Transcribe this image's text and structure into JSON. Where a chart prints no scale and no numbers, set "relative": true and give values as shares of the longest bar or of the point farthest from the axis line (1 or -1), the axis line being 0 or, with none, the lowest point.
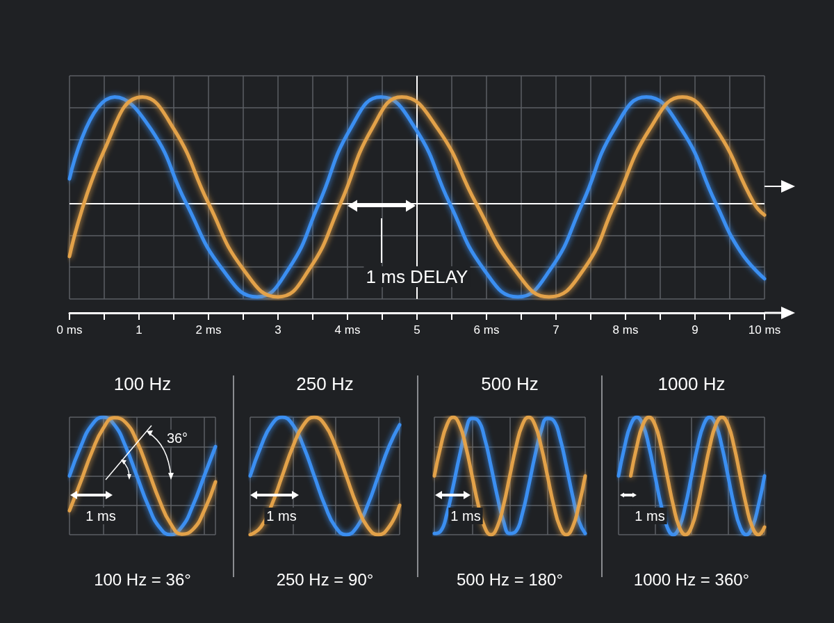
{
  "chart_data": [
    {
      "type": "line",
      "relative": true,
      "marker": "none",
      "grid": true,
      "xlim": [
        0,
        10
      ],
      "xticks": [
        {
          "value": 0,
          "label": "0 ms"
        },
        {
          "value": 0.5,
          "label": null
        },
        {
          "value": 1,
          "label": "1"
        },
        {
          "value": 1.5,
          "label": null
        },
        {
          "value": 2,
          "label": "2 ms"
        },
        {
          "value": 2.5,
          "label": null
        },
        {
          "value": 3,
          "label": "3"
        },
        {
          "value": 3.5,
          "label": null
        },
        {
          "value": 4,
          "label": "4 ms"
        },
        {
          "value": 4.5,
          "label": null
        },
        {
          "value": 5,
          "label": "5"
        },
        {
          "value": 5.5,
          "label": null
        },
        {
          "value": 6,
          "label": "6 ms"
        },
        {
          "value": 6.5,
          "label": null
        },
        {
          "value": 7,
          "label": "7"
        },
        {
          "value": 7.5,
          "label": null
        },
        {
          "value": 8,
          "label": "8 ms"
        },
        {
          "value": 8.5,
          "label": null
        },
        {
          "value": 9,
          "label": "9"
        },
        {
          "value": 9.5,
          "label": null
        },
        {
          "value": 10,
          "label": "10 ms"
        }
      ],
      "series": [
        {
          "color": "#3b8ff2",
          "x": [
            0,
            0.65,
            1.17,
            1.68,
            2.2,
            2.7,
            3.15,
            3.59,
            4.04,
            4.48,
            4.98,
            5.47,
            5.96,
            6.45,
            6.92,
            7.38,
            7.84,
            8.3,
            8.8,
            9.3,
            9.65,
            10
          ],
          "values": [
            0.23,
            1,
            0.7,
            0,
            -0.62,
            -0.88,
            -0.62,
            0,
            0.7,
            1,
            0.7,
            0,
            -0.62,
            -0.88,
            -0.62,
            0,
            0.7,
            1,
            0.7,
            0,
            -0.45,
            -0.71
          ]
        },
        {
          "color": "#e3a24a",
          "x": [
            0,
            0.5,
            1.05,
            1.5,
            2.0,
            2.5,
            3.0,
            3.45,
            3.9,
            4.35,
            4.78,
            5.3,
            5.85,
            6.4,
            6.9,
            7.4,
            7.85,
            8.35,
            8.82,
            9.3,
            9.85,
            10
          ],
          "values": [
            -0.5,
            0.5,
            1,
            0.7,
            0,
            -0.62,
            -0.88,
            -0.62,
            0,
            0.7,
            1,
            0.7,
            0,
            -0.62,
            -0.88,
            -0.62,
            0,
            0.7,
            1,
            0.7,
            0,
            -0.11
          ]
        }
      ],
      "ref_lines": [
        {
          "axis": "y",
          "value": 0
        },
        {
          "axis": "x",
          "value": 5
        }
      ],
      "annotations": [
        "1 ms DELAY"
      ]
    },
    {
      "type": "line",
      "relative": true,
      "marker": "none",
      "grid": true,
      "title": "100 Hz",
      "xlabel": "100 Hz = 36°",
      "categories": [
        null,
        null,
        null,
        null,
        null,
        null,
        null,
        null,
        null,
        null,
        null,
        null,
        null,
        null
      ],
      "series": [
        {
          "color": "#3b8ff2",
          "values": [
            0,
            0.5,
            0.87,
            1,
            0.87,
            0.5,
            0,
            -0.5,
            -0.87,
            -1,
            -0.87,
            -0.5,
            0,
            0.5
          ]
        },
        {
          "color": "#e3a24a",
          "values": [
            -0.59,
            -0.1,
            0.41,
            0.81,
            0.99,
            0.91,
            0.59,
            0.1,
            -0.41,
            -0.81,
            -0.99,
            -0.91,
            -0.59,
            -0.1
          ]
        }
      ],
      "annotations": [
        "1 ms",
        "36°"
      ]
    },
    {
      "type": "line",
      "relative": true,
      "marker": "none",
      "grid": true,
      "title": "250 Hz",
      "xlabel": "250 Hz = 90°",
      "categories": [
        null,
        null,
        null,
        null,
        null,
        null,
        null,
        null,
        null,
        null,
        null,
        null,
        null,
        null,
        null
      ],
      "series": [
        {
          "color": "#3b8ff2",
          "values": [
            0,
            0.5,
            0.87,
            1,
            0.87,
            0.5,
            0,
            -0.5,
            -0.87,
            -1,
            -0.87,
            -0.5,
            0,
            0.5,
            0.87
          ]
        },
        {
          "color": "#e3a24a",
          "values": [
            -1,
            -0.87,
            -0.5,
            0,
            0.5,
            0.87,
            1,
            0.87,
            0.5,
            0,
            -0.5,
            -0.87,
            -1,
            -0.87,
            -0.5
          ]
        }
      ],
      "annotations": [
        "1 ms"
      ]
    },
    {
      "type": "line",
      "relative": true,
      "marker": "none",
      "grid": true,
      "title": "500 Hz",
      "xlabel": "500 Hz = 180°",
      "categories": [
        null,
        null,
        null,
        null,
        null,
        null,
        null,
        null,
        null,
        null,
        null,
        null,
        null,
        null,
        null,
        null,
        null,
        null,
        null,
        null,
        null,
        null,
        null,
        null,
        null
      ],
      "series": [
        {
          "color": "#3b8ff2",
          "values": [
            -0.98,
            -0.94,
            -0.64,
            -0.17,
            0.34,
            0.77,
            0.98,
            0.94,
            0.64,
            0.17,
            -0.34,
            -0.77,
            -0.98,
            -0.94,
            -0.64,
            -0.17,
            0.34,
            0.77,
            0.98,
            0.94,
            0.64,
            0.17,
            -0.34,
            -0.77,
            -0.98
          ]
        },
        {
          "color": "#e3a24a",
          "values": [
            0,
            0.5,
            0.87,
            1,
            0.87,
            0.5,
            0,
            -0.5,
            -0.87,
            -1,
            -0.87,
            -0.5,
            0,
            0.5,
            0.87,
            1,
            0.87,
            0.5,
            0,
            -0.5,
            -0.87,
            -1,
            -0.87,
            -0.5,
            0
          ]
        }
      ],
      "annotations": [
        "1 ms"
      ]
    },
    {
      "type": "line",
      "relative": true,
      "marker": "none",
      "grid": true,
      "title": "1000 Hz",
      "xlabel": "1000 Hz = 360°",
      "categories": [
        null,
        null,
        null,
        null,
        null,
        null,
        null,
        null,
        null,
        null,
        null,
        null,
        null,
        null,
        null,
        null,
        null,
        null,
        null,
        null,
        null,
        null,
        null,
        null,
        null
      ],
      "series": [
        {
          "color": "#3b8ff2",
          "values": [
            0,
            0.5,
            0.87,
            1,
            0.87,
            0.5,
            0,
            -0.5,
            -0.87,
            -1,
            -0.87,
            -0.5,
            0,
            0.5,
            0.87,
            1,
            0.87,
            0.5,
            0,
            -0.5,
            -0.87,
            -1,
            -0.87,
            -0.5,
            0
          ]
        },
        {
          "color": "#e3a24a",
          "values": [
            null,
            null,
            0,
            0.5,
            0.87,
            1,
            0.87,
            0.5,
            0,
            -0.5,
            -0.87,
            -1,
            -0.87,
            -0.5,
            0,
            0.5,
            0.87,
            1,
            0.87,
            0.5,
            0,
            -0.5,
            -0.87,
            -1,
            -0.87
          ]
        }
      ],
      "annotations": [
        "1 ms"
      ]
    }
  ]
}
